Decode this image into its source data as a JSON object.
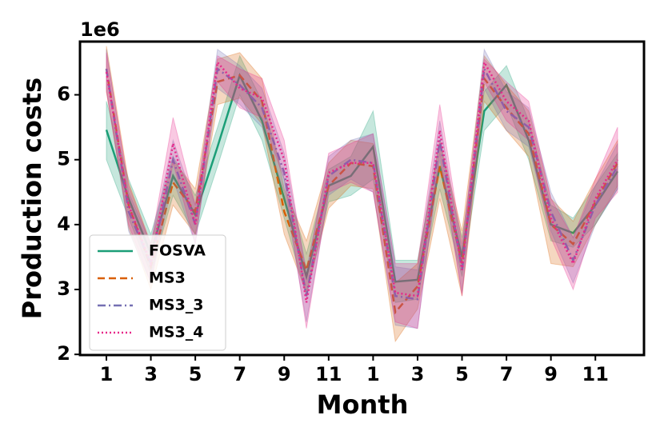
{
  "chart_data": {
    "type": "line",
    "ylabel": "Production costs",
    "xlabel": "Month",
    "y_offset_label": "1e6",
    "categories": [
      "1",
      null,
      "3",
      null,
      "5",
      null,
      "7",
      null,
      "9",
      null,
      "11",
      null,
      "1",
      null,
      "3",
      null,
      "5",
      null,
      "7",
      null,
      "9",
      null,
      "11",
      null
    ],
    "ylim": [
      1.99,
      6.82
    ],
    "yticks": [
      2,
      3,
      4,
      5,
      6
    ],
    "grid": false,
    "legend": "lower left",
    "series": [
      {
        "name": "FOSVA",
        "color": "#1b9e77",
        "linestyle": "solid",
        "values": [
          5.46,
          4.4,
          3.55,
          4.75,
          4.15,
          5.2,
          6.3,
          5.6,
          4.4,
          3.2,
          4.6,
          4.75,
          5.2,
          3.12,
          3.15,
          4.9,
          3.5,
          5.75,
          6.15,
          5.3,
          4.0,
          3.87,
          4.3,
          4.82
        ],
        "lower": [
          5.0,
          4.1,
          3.25,
          4.45,
          3.85,
          4.9,
          6.0,
          5.3,
          4.1,
          2.9,
          4.35,
          4.45,
          4.7,
          2.8,
          2.85,
          4.55,
          3.2,
          5.45,
          5.85,
          5.0,
          3.75,
          3.65,
          4.0,
          4.55
        ],
        "upper": [
          5.9,
          4.7,
          3.85,
          5.05,
          4.45,
          5.5,
          6.6,
          5.9,
          4.7,
          3.55,
          4.85,
          5.05,
          5.75,
          3.45,
          3.45,
          5.25,
          3.8,
          6.05,
          6.45,
          5.6,
          4.3,
          4.1,
          4.6,
          5.1
        ]
      },
      {
        "name": "MS3",
        "color": "#d95f02",
        "linestyle": "dashed",
        "values": [
          6.4,
          4.3,
          3.35,
          4.65,
          4.2,
          6.2,
          6.3,
          5.9,
          4.2,
          3.3,
          4.6,
          4.95,
          4.9,
          2.65,
          3.05,
          4.9,
          3.4,
          6.25,
          5.8,
          5.4,
          4.0,
          3.7,
          4.35,
          4.95
        ],
        "lower": [
          6.05,
          3.95,
          3.0,
          4.3,
          3.85,
          5.85,
          5.95,
          5.55,
          3.85,
          2.95,
          4.25,
          4.6,
          4.55,
          2.2,
          2.7,
          4.4,
          2.9,
          5.9,
          5.45,
          5.05,
          3.4,
          3.35,
          4.0,
          4.6
        ],
        "upper": [
          6.75,
          4.65,
          3.7,
          5.0,
          4.55,
          6.55,
          6.65,
          6.25,
          4.55,
          3.75,
          4.95,
          5.3,
          5.25,
          3.1,
          3.4,
          5.3,
          3.9,
          6.6,
          6.15,
          5.75,
          4.4,
          4.05,
          4.7,
          5.3
        ]
      },
      {
        "name": "MS3_3",
        "color": "#7570b3",
        "linestyle": "dashdot",
        "values": [
          6.4,
          4.2,
          3.4,
          5.0,
          4.0,
          6.4,
          6.15,
          5.8,
          4.8,
          2.9,
          4.75,
          5.0,
          4.95,
          2.9,
          2.85,
          5.3,
          3.3,
          6.4,
          5.75,
          5.5,
          4.2,
          3.45,
          4.3,
          4.9
        ],
        "lower": [
          6.1,
          3.9,
          3.1,
          4.7,
          3.7,
          6.1,
          5.85,
          5.5,
          4.5,
          2.5,
          4.45,
          4.7,
          4.5,
          2.45,
          2.4,
          5.0,
          2.95,
          6.1,
          5.45,
          5.2,
          3.9,
          3.1,
          4.0,
          4.55
        ],
        "upper": [
          6.7,
          4.5,
          3.7,
          5.3,
          4.3,
          6.7,
          6.45,
          6.1,
          5.1,
          3.3,
          5.05,
          5.3,
          5.4,
          3.35,
          3.3,
          5.6,
          3.6,
          6.7,
          6.05,
          5.8,
          4.5,
          3.8,
          4.6,
          5.25
        ]
      },
      {
        "name": "MS3_4",
        "color": "#e7298a",
        "linestyle": "dotted",
        "values": [
          6.35,
          4.3,
          3.4,
          5.25,
          4.0,
          6.5,
          6.1,
          5.95,
          5.0,
          2.8,
          4.8,
          4.95,
          4.95,
          2.95,
          2.9,
          5.45,
          3.3,
          6.5,
          5.9,
          5.6,
          4.1,
          3.4,
          4.4,
          5.0
        ],
        "lower": [
          6.05,
          4.0,
          3.1,
          4.95,
          3.7,
          6.2,
          5.8,
          5.65,
          4.7,
          2.4,
          4.5,
          4.65,
          4.5,
          2.5,
          2.4,
          5.1,
          2.9,
          6.2,
          5.6,
          5.3,
          3.8,
          3.0,
          4.1,
          4.5
        ],
        "upper": [
          6.65,
          4.6,
          3.7,
          5.65,
          4.3,
          6.6,
          6.4,
          6.25,
          5.3,
          3.2,
          5.1,
          5.25,
          5.4,
          3.4,
          3.4,
          5.85,
          3.7,
          6.55,
          6.2,
          5.9,
          4.4,
          3.8,
          4.7,
          5.5
        ]
      }
    ]
  }
}
